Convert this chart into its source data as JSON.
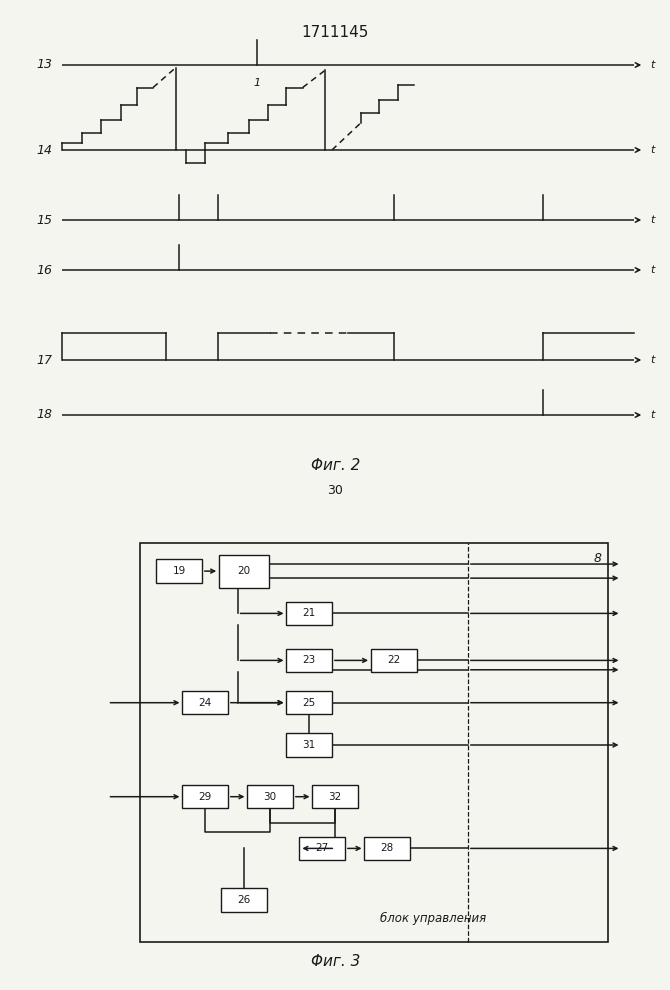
{
  "title": "1711145",
  "fig2_label": "Φиг. 2",
  "fig3_label": "Φиг. 3",
  "fig2_sublabel": "30",
  "bg_color": "#f5f5f0",
  "line_color": "#1a1a1a",
  "signal_labels": [
    "13",
    "14",
    "15",
    "16",
    "17",
    "18"
  ]
}
